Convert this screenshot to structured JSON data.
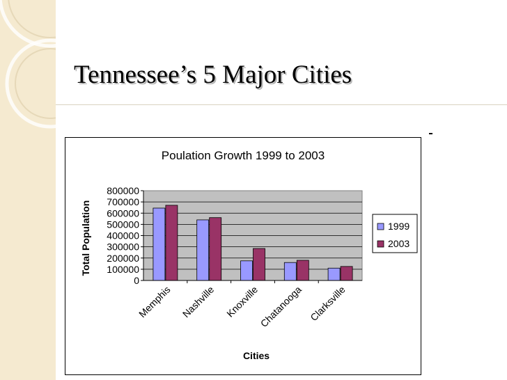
{
  "slide": {
    "title": "Tennessee’s 5 Major Cities"
  },
  "chart_data": {
    "type": "bar",
    "title": "Poulation Growth 1999 to 2003",
    "xlabel": "Cities",
    "ylabel": "Total Population",
    "categories": [
      "Memphis",
      "Nashville",
      "Knoxville",
      "Chatanooga",
      "Clarksville"
    ],
    "series": [
      {
        "name": "1999",
        "values": [
          645000,
          540000,
          175000,
          160000,
          110000
        ]
      },
      {
        "name": "2003",
        "values": [
          670000,
          560000,
          285000,
          180000,
          125000
        ]
      }
    ],
    "ylim": [
      0,
      800000
    ],
    "yticks": [
      "0",
      "100000",
      "200000",
      "300000",
      "400000",
      "500000",
      "600000",
      "700000",
      "800000"
    ],
    "grid": true,
    "legend": "right",
    "colors": {
      "1999": "#9999ff",
      "2003": "#993366",
      "plot_bg": "#c0c0c0"
    }
  }
}
